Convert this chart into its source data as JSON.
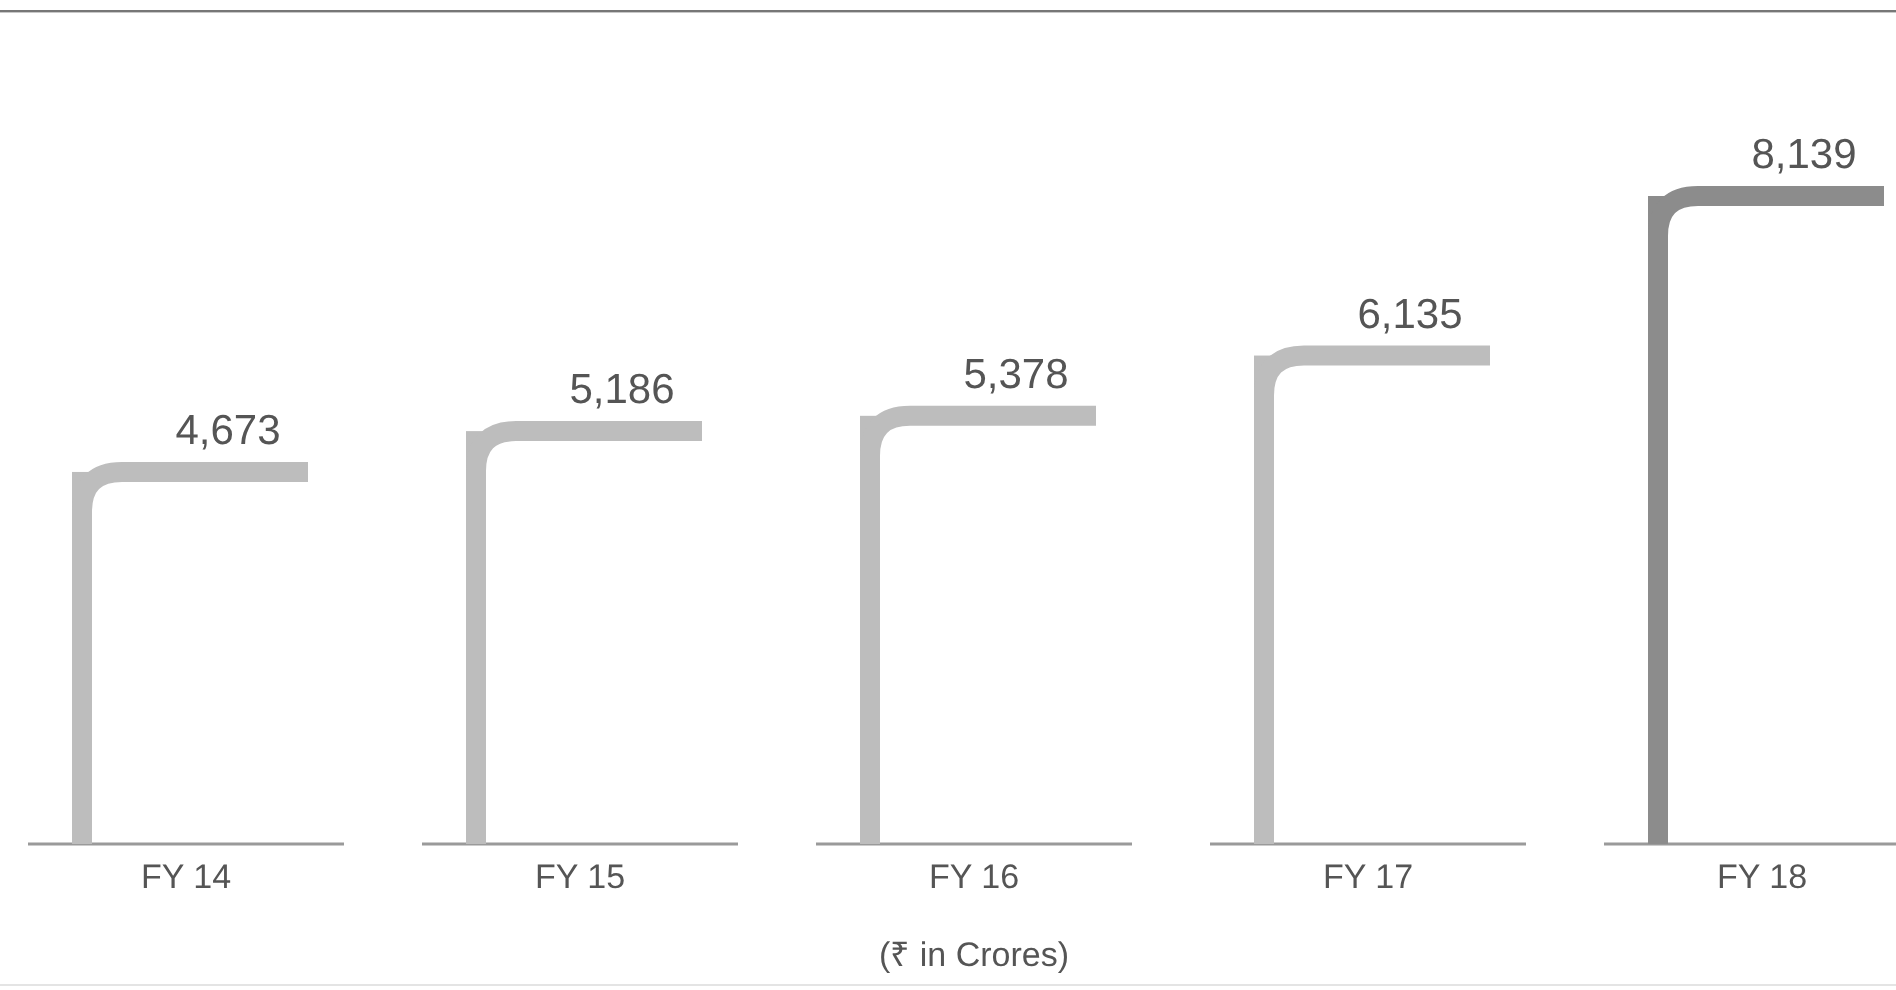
{
  "chart_data": {
    "type": "bar",
    "categories": [
      "FY 14",
      "FY 15",
      "FY 16",
      "FY 17",
      "FY 18"
    ],
    "values": [
      4673,
      5186,
      5378,
      6135,
      8139
    ],
    "colors": [
      "#bdbdbd",
      "#bdbdbd",
      "#bdbdbd",
      "#bdbdbd",
      "#8c8c8c"
    ],
    "value_labels": [
      "4,673",
      "5,186",
      "5,378",
      "6,135",
      "8,139"
    ],
    "annotations": [
      "(₹ in Crores)"
    ]
  }
}
